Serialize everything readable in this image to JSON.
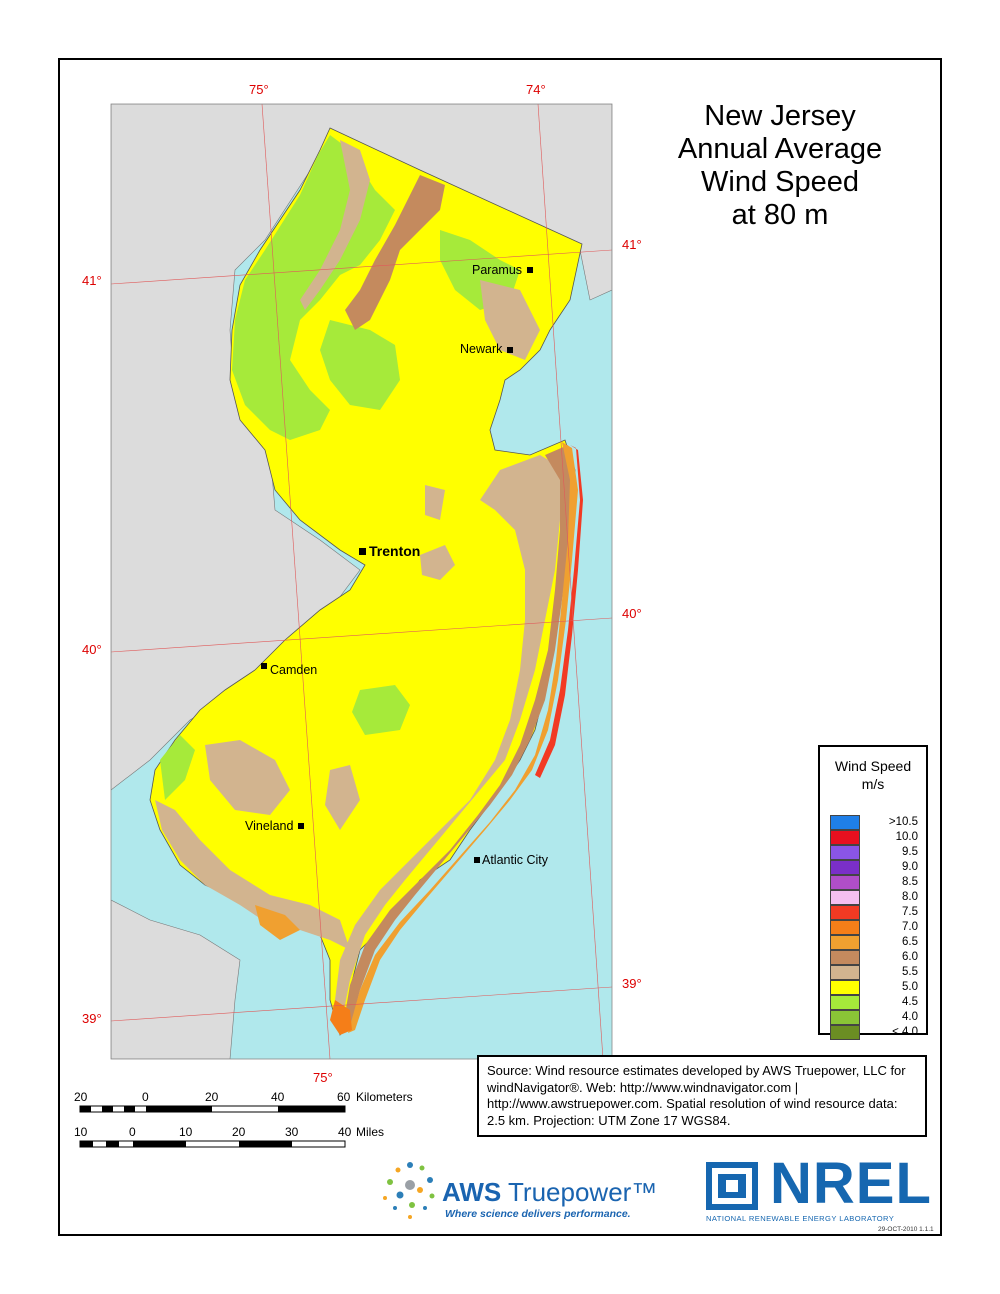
{
  "title": "New Jersey\nAnnual Average\nWind Speed\nat 80 m",
  "graticule": {
    "lon_top": [
      "75°",
      "74°"
    ],
    "lon_bottom": [
      "75°"
    ],
    "lat_left": [
      "41°",
      "40°",
      "39°"
    ],
    "lat_right": [
      "41°",
      "40°",
      "39°"
    ]
  },
  "cities": {
    "paramus": "Paramus",
    "newark": "Newark",
    "trenton": "Trenton",
    "camden": "Camden",
    "vineland": "Vineland",
    "atlantic_city": "Atlantic City"
  },
  "legend": {
    "title": "Wind Speed",
    "unit": "m/s",
    "items": [
      {
        "label": ">10.5",
        "color": "#1f7fe8"
      },
      {
        "label": "10.0",
        "color": "#e8101f"
      },
      {
        "label": "9.5",
        "color": "#8a55e6"
      },
      {
        "label": "9.0",
        "color": "#7a2fc8"
      },
      {
        "label": "8.5",
        "color": "#b04ec8"
      },
      {
        "label": "8.0",
        "color": "#f5bff0"
      },
      {
        "label": "7.5",
        "color": "#f23a23"
      },
      {
        "label": "7.0",
        "color": "#f57e18"
      },
      {
        "label": "6.5",
        "color": "#f0a030"
      },
      {
        "label": "6.0",
        "color": "#c48a5e"
      },
      {
        "label": "5.5",
        "color": "#d2b48f"
      },
      {
        "label": "5.0",
        "color": "#ffff00"
      },
      {
        "label": "4.5",
        "color": "#a6ea3a"
      },
      {
        "label": "4.0",
        "color": "#8ac436"
      },
      {
        "label": "< 4.0",
        "color": "#6b8e23"
      }
    ]
  },
  "scale_bar": {
    "km_ticks": [
      "20",
      "0",
      "20",
      "40",
      "60"
    ],
    "km_unit": "Kilometers",
    "mi_ticks": [
      "10",
      "0",
      "10",
      "20",
      "30",
      "40"
    ],
    "mi_unit": "Miles"
  },
  "source": "Source: Wind resource estimates developed by AWS Truepower, LLC for windNavigator®. Web: http://www.windnavigator.com | http://www.awstruepower.com. Spatial resolution of wind resource data: 2.5 km. Projection: UTM Zone 17 WGS84.",
  "logos": {
    "aws_brand": "AWS",
    "aws_name": "Truepower™",
    "aws_tagline": "Where science delivers performance.",
    "nrel_name": "NREL",
    "nrel_full": "NATIONAL RENEWABLE ENERGY LABORATORY",
    "date_stamp": "29-OCT-2010 1.1.1"
  },
  "colors": {
    "water": "#b0e8ec",
    "land_other": "#dcdcdc",
    "graticule": "#e05a5a",
    "class_5_0": "#ffff00",
    "class_5_5": "#d2b48f",
    "class_6_0": "#c48a5e",
    "class_6_5": "#f0a030",
    "class_7_0": "#f57e18",
    "class_7_5": "#f23a23",
    "class_4_5": "#a6ea3a"
  }
}
